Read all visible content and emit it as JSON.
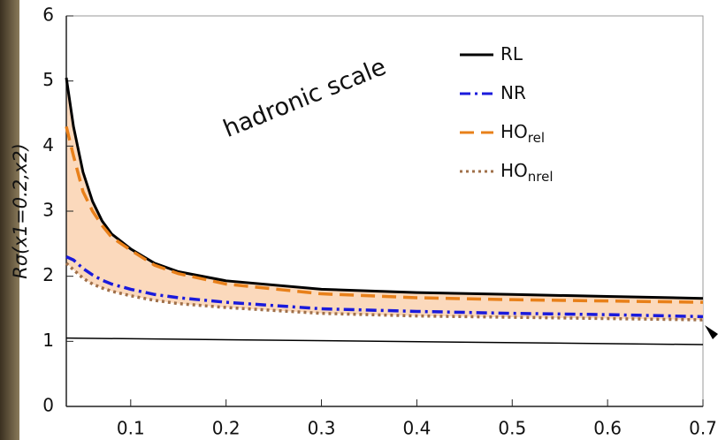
{
  "chart_data": {
    "type": "line",
    "ylabel": "Rσ(x1=0.2,x2)",
    "annotation": "hadronic scale",
    "x": [
      0.0325,
      0.04,
      0.05,
      0.06,
      0.07,
      0.08,
      0.1,
      0.125,
      0.15,
      0.2,
      0.3,
      0.4,
      0.5,
      0.6,
      0.7
    ],
    "series": [
      {
        "name": "RL",
        "color": "#000000",
        "style": "solid",
        "values": [
          5.05,
          4.3,
          3.6,
          3.15,
          2.85,
          2.65,
          2.42,
          2.2,
          2.07,
          1.93,
          1.8,
          1.75,
          1.72,
          1.69,
          1.66
        ]
      },
      {
        "name": "NR",
        "color": "#1a1adc",
        "style": "dashdot",
        "values": [
          2.3,
          2.25,
          2.12,
          2.02,
          1.94,
          1.88,
          1.8,
          1.72,
          1.67,
          1.6,
          1.5,
          1.46,
          1.43,
          1.41,
          1.38
        ]
      },
      {
        "name": "HO",
        "name_sub": "rel",
        "color": "#e8801a",
        "style": "dashed",
        "values": [
          4.3,
          3.85,
          3.3,
          3.0,
          2.78,
          2.6,
          2.4,
          2.17,
          2.04,
          1.88,
          1.73,
          1.67,
          1.64,
          1.62,
          1.6
        ]
      },
      {
        "name": "HO",
        "name_sub": "nrel",
        "color": "#a0704a",
        "style": "dotted",
        "values": [
          2.2,
          2.1,
          1.97,
          1.88,
          1.82,
          1.77,
          1.7,
          1.63,
          1.58,
          1.52,
          1.43,
          1.39,
          1.37,
          1.35,
          1.33
        ]
      }
    ],
    "fill_between": [
      0,
      3
    ],
    "fill_color": "#fbd9bc",
    "reference_line": {
      "x": [
        0.0325,
        0.7
      ],
      "values": [
        1.05,
        0.95
      ],
      "color": "#000000"
    },
    "xlim": [
      0.0325,
      0.7
    ],
    "xticks": [
      0.1,
      0.2,
      0.3,
      0.4,
      0.5,
      0.6,
      0.7
    ],
    "ylim": [
      0,
      6
    ],
    "yticks": [
      0,
      1,
      2,
      3,
      4,
      5,
      6
    ],
    "legend": "upper right"
  }
}
